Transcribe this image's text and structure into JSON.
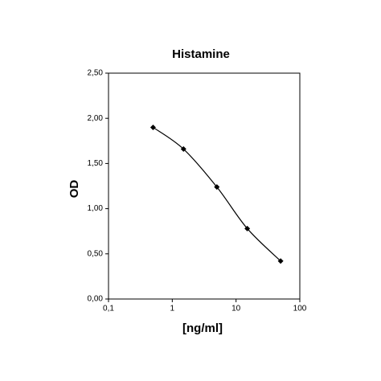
{
  "chart_data": {
    "type": "line",
    "title": "Histamine",
    "x_label": "[ng/ml]",
    "y_label": "OD",
    "x": [
      0.5,
      1.5,
      5,
      15,
      50
    ],
    "series": [
      {
        "name": "Histamine",
        "color": "#000000",
        "values": [
          1.9,
          1.66,
          1.24,
          0.78,
          0.42
        ]
      }
    ],
    "x_scale": "log",
    "xlim": [
      0.1,
      100
    ],
    "xticks": [
      {
        "value": 0.1,
        "label": "0,1"
      },
      1,
      10,
      100
    ],
    "ylim": [
      0,
      2.5
    ],
    "yticks": [
      {
        "value": 0,
        "label": "0,00"
      },
      {
        "value": 0.5,
        "label": "0,50"
      },
      {
        "value": 1,
        "label": "1,00"
      },
      {
        "value": 1.5,
        "label": "1,50"
      },
      {
        "value": 2,
        "label": "2,00"
      },
      {
        "value": 2.5,
        "label": "2,50"
      }
    ]
  }
}
